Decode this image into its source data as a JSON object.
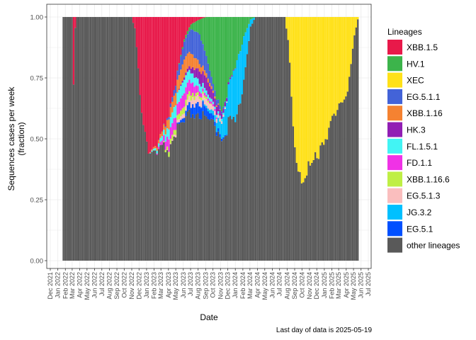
{
  "chart_data": {
    "type": "bar",
    "stacked": true,
    "xlabel": "Date",
    "ylabel": "Sequences cases per week (fraction)",
    "ylabel_lines": [
      "Sequences cases per week",
      "(fraction)"
    ],
    "ylim": [
      0,
      1
    ],
    "yticks": [
      "0.00",
      "0.25",
      "0.50",
      "0.75",
      "1.00"
    ],
    "grid": true,
    "legend_title": "Lineages",
    "legend_position": "right",
    "caption": "Last day of data is 2025-05-19",
    "x_ticks": [
      "Dec 2021",
      "Jan 2022",
      "Feb 2022",
      "Mar 2022",
      "Apr 2022",
      "May 2022",
      "Jun 2022",
      "Jul 2022",
      "Aug 2022",
      "Sep 2022",
      "Oct 2022",
      "Nov 2022",
      "Dec 2022",
      "Jan 2023",
      "Feb 2023",
      "Mar 2023",
      "Apr 2023",
      "May 2023",
      "Jun 2023",
      "Jul 2023",
      "Aug 2023",
      "Sep 2023",
      "Oct 2023",
      "Nov 2023",
      "Dec 2023",
      "Jan 2024",
      "Feb 2024",
      "Mar 2024",
      "Apr 2024",
      "May 2024",
      "Jun 2024",
      "Jul 2024",
      "Aug 2024",
      "Sep 2024",
      "Oct 2024",
      "Nov 2024",
      "Dec 2024",
      "Jan 2025",
      "Feb 2025",
      "Mar 2025",
      "Apr 2025",
      "May 2025",
      "Jun 2025",
      "Jul 2025"
    ],
    "series": [
      {
        "name": "XBB.1.5",
        "color": "#E8194A"
      },
      {
        "name": "HV.1",
        "color": "#3CB44B"
      },
      {
        "name": "XEC",
        "color": "#FFE119"
      },
      {
        "name": "EG.5.1.1",
        "color": "#4363D8"
      },
      {
        "name": "XBB.1.16",
        "color": "#F58231"
      },
      {
        "name": "HK.3",
        "color": "#911EB4"
      },
      {
        "name": "FL.1.5.1",
        "color": "#42F4F4"
      },
      {
        "name": "FD.1.1",
        "color": "#F032E6"
      },
      {
        "name": "XBB.1.16.6",
        "color": "#BFEF45"
      },
      {
        "name": "EG.5.1.3",
        "color": "#FABEBE"
      },
      {
        "name": "JG.3.2",
        "color": "#00C0FF"
      },
      {
        "name": "EG.5.1",
        "color": "#0050FF"
      },
      {
        "name": "other lineages",
        "color": "#595959"
      }
    ],
    "weekly_fractions": {
      "x_start": "2022-01-24",
      "x_end": "2025-05-19",
      "keys": [
        "t",
        "XBB.1.5",
        "HV.1",
        "XEC",
        "EG.5.1.1",
        "XBB.1.16",
        "HK.3",
        "FL.1.5.1",
        "FD.1.1",
        "XBB.1.16.6",
        "EG.5.1.3",
        "JG.3.2",
        "EG.5.1"
      ],
      "points": [
        [
          "2022-01-24",
          0,
          0,
          0,
          0,
          0,
          0,
          0,
          0,
          0,
          0,
          0,
          0
        ],
        [
          "2022-03-01",
          0,
          0,
          0,
          0,
          0,
          0,
          0,
          0,
          0,
          0,
          0,
          0
        ],
        [
          "2022-03-08",
          0.32,
          0,
          0,
          0,
          0,
          0,
          0,
          0,
          0,
          0,
          0,
          0
        ],
        [
          "2022-03-15",
          0,
          0,
          0,
          0,
          0,
          0,
          0,
          0,
          0,
          0,
          0,
          0
        ],
        [
          "2022-10-31",
          0,
          0,
          0,
          0,
          0,
          0,
          0,
          0,
          0,
          0,
          0,
          0
        ],
        [
          "2022-11-14",
          0.05,
          0,
          0,
          0,
          0,
          0,
          0,
          0,
          0,
          0,
          0,
          0
        ],
        [
          "2022-12-12",
          0.4,
          0,
          0,
          0,
          0,
          0,
          0,
          0,
          0,
          0,
          0,
          0
        ],
        [
          "2023-01-09",
          0.57,
          0,
          0,
          0,
          0,
          0,
          0,
          0,
          0,
          0,
          0,
          0
        ],
        [
          "2023-02-06",
          0.58,
          0,
          0,
          0,
          0.01,
          0,
          0.01,
          0,
          0,
          0,
          0,
          0
        ],
        [
          "2023-03-06",
          0.52,
          0,
          0,
          0,
          0.02,
          0,
          0.02,
          0.02,
          0,
          0,
          0,
          0
        ],
        [
          "2023-04-03",
          0.4,
          0,
          0,
          0.01,
          0.04,
          0,
          0.04,
          0.05,
          0.02,
          0,
          0,
          0
        ],
        [
          "2023-05-01",
          0.28,
          0,
          0,
          0.03,
          0.05,
          0,
          0.05,
          0.05,
          0.02,
          0.01,
          0,
          0
        ],
        [
          "2023-06-05",
          0.1,
          0.01,
          0,
          0.08,
          0.08,
          0.01,
          0.06,
          0.06,
          0.03,
          0.02,
          0,
          0.02
        ],
        [
          "2023-07-03",
          0.03,
          0.02,
          0,
          0.1,
          0.06,
          0.02,
          0.04,
          0.05,
          0.02,
          0.03,
          0,
          0.04
        ],
        [
          "2023-08-07",
          0.01,
          0.06,
          0,
          0.12,
          0.03,
          0.05,
          0.03,
          0.02,
          0.01,
          0.03,
          0,
          0.05
        ],
        [
          "2023-09-04",
          0,
          0.18,
          0,
          0.08,
          0.02,
          0.06,
          0.02,
          0.01,
          0.01,
          0.03,
          0.01,
          0.04
        ],
        [
          "2023-10-02",
          0,
          0.3,
          0,
          0.03,
          0.01,
          0.04,
          0.01,
          0.01,
          0,
          0.02,
          0.02,
          0.02
        ],
        [
          "2023-11-06",
          0,
          0.38,
          0,
          0.01,
          0,
          0.02,
          0.01,
          0,
          0,
          0.01,
          0.06,
          0.01
        ],
        [
          "2023-12-04",
          0,
          0.3,
          0,
          0,
          0,
          0.01,
          0,
          0,
          0,
          0,
          0.15,
          0
        ],
        [
          "2024-01-08",
          0,
          0.2,
          0,
          0,
          0,
          0,
          0,
          0,
          0,
          0,
          0.25,
          0
        ],
        [
          "2024-02-05",
          0,
          0.08,
          0,
          0,
          0,
          0,
          0,
          0,
          0,
          0,
          0.18,
          0
        ],
        [
          "2024-03-04",
          0,
          0.01,
          0,
          0,
          0,
          0,
          0,
          0,
          0,
          0,
          0.03,
          0
        ],
        [
          "2024-03-25",
          0,
          0,
          0,
          0,
          0,
          0,
          0,
          0,
          0,
          0,
          0,
          0
        ],
        [
          "2024-07-22",
          0,
          0,
          0,
          0,
          0,
          0,
          0,
          0,
          0,
          0,
          0,
          0
        ],
        [
          "2024-08-05",
          0,
          0,
          0.1,
          0,
          0,
          0,
          0,
          0,
          0,
          0,
          0,
          0
        ],
        [
          "2024-09-02",
          0,
          0,
          0.55,
          0,
          0,
          0,
          0,
          0,
          0,
          0,
          0,
          0
        ],
        [
          "2024-10-07",
          0,
          0,
          0.72,
          0,
          0,
          0,
          0,
          0,
          0,
          0,
          0,
          0
        ],
        [
          "2024-11-04",
          0,
          0,
          0.65,
          0,
          0,
          0,
          0,
          0,
          0,
          0,
          0,
          0
        ],
        [
          "2024-12-02",
          0,
          0,
          0.58,
          0,
          0,
          0,
          0,
          0,
          0,
          0,
          0,
          0
        ],
        [
          "2025-01-06",
          0,
          0,
          0.5,
          0,
          0,
          0,
          0,
          0,
          0,
          0,
          0,
          0
        ],
        [
          "2025-02-03",
          0,
          0,
          0.45,
          0,
          0,
          0,
          0,
          0,
          0,
          0,
          0,
          0
        ],
        [
          "2025-03-03",
          0,
          0,
          0.4,
          0,
          0,
          0,
          0,
          0,
          0,
          0,
          0,
          0
        ],
        [
          "2025-04-07",
          0,
          0,
          0.3,
          0,
          0,
          0,
          0,
          0,
          0,
          0,
          0,
          0
        ],
        [
          "2025-05-05",
          0,
          0,
          0.08,
          0,
          0,
          0,
          0,
          0,
          0,
          0,
          0,
          0
        ],
        [
          "2025-05-19",
          0,
          0,
          0.01,
          0,
          0,
          0,
          0,
          0,
          0,
          0,
          0,
          0
        ]
      ]
    }
  }
}
